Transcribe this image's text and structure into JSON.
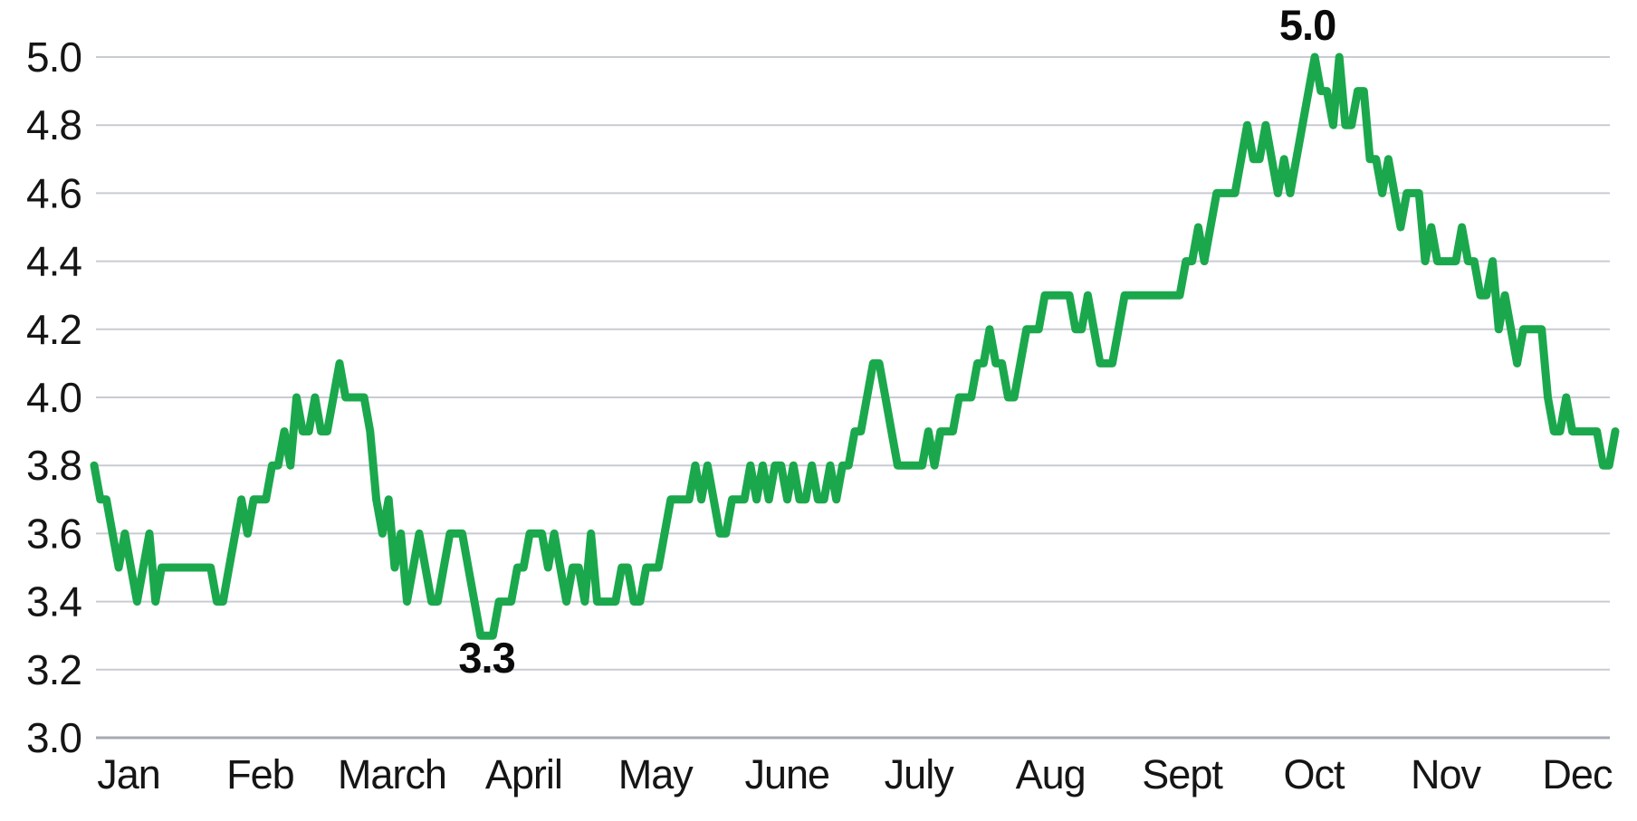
{
  "chart_data": {
    "type": "line",
    "title": "",
    "xlabel": "",
    "ylabel": "",
    "ylim": [
      3.0,
      5.0
    ],
    "ytick_step": 0.2,
    "y_tick_labels": [
      "5.0",
      "4.8",
      "4.6",
      "4.4",
      "4.2",
      "4.0",
      "3.8",
      "3.6",
      "3.4",
      "3.2",
      "3.0"
    ],
    "grid": true,
    "legend": "none",
    "colors": {
      "line": "#1ba84d",
      "grid": "#c9cbd3",
      "axis_bottom": "#a7aab3",
      "text": "#151515",
      "annotation": "#0b0b0b"
    },
    "annotations": [
      {
        "text": "5.0",
        "anchor": "max"
      },
      {
        "text": "3.3",
        "anchor": "min"
      }
    ],
    "series": [
      {
        "name": "line",
        "months": [
          {
            "label": "Jan",
            "values": [
              3.8,
              3.7,
              3.7,
              3.6,
              3.5,
              3.6,
              3.5,
              3.4,
              3.5,
              3.6,
              3.4,
              3.5,
              3.5,
              3.5,
              3.5,
              3.5,
              3.5,
              3.5,
              3.5,
              3.5
            ]
          },
          {
            "label": "Feb",
            "values": [
              3.4,
              3.4,
              3.5,
              3.6,
              3.7,
              3.6,
              3.7,
              3.7,
              3.7,
              3.8,
              3.8,
              3.9,
              3.8,
              4.0,
              3.9,
              3.9,
              4.0,
              3.9,
              3.9
            ]
          },
          {
            "label": "March",
            "values": [
              4.0,
              4.1,
              4.0,
              4.0,
              4.0,
              4.0,
              3.9,
              3.7,
              3.6,
              3.7,
              3.5,
              3.6,
              3.4,
              3.5,
              3.6,
              3.5,
              3.4,
              3.4,
              3.5,
              3.6,
              3.6,
              3.6,
              3.5
            ]
          },
          {
            "label": "April",
            "values": [
              3.4,
              3.3,
              3.3,
              3.3,
              3.4,
              3.4,
              3.4,
              3.5,
              3.5,
              3.6,
              3.6,
              3.6,
              3.5,
              3.6,
              3.5,
              3.4,
              3.5,
              3.5,
              3.4
            ]
          },
          {
            "label": "May",
            "values": [
              3.6,
              3.4,
              3.4,
              3.4,
              3.4,
              3.5,
              3.5,
              3.4,
              3.4,
              3.5,
              3.5,
              3.5,
              3.6,
              3.7,
              3.7,
              3.7,
              3.7,
              3.8,
              3.7,
              3.8,
              3.7,
              3.6
            ]
          },
          {
            "label": "June",
            "values": [
              3.6,
              3.7,
              3.7,
              3.7,
              3.8,
              3.7,
              3.8,
              3.7,
              3.8,
              3.8,
              3.7,
              3.8,
              3.7,
              3.7,
              3.8,
              3.7,
              3.7,
              3.8,
              3.7,
              3.8,
              3.8
            ]
          },
          {
            "label": "July",
            "values": [
              3.9,
              3.9,
              4.0,
              4.1,
              4.1,
              4.0,
              3.9,
              3.8,
              3.8,
              3.8,
              3.8,
              3.8,
              3.9,
              3.8,
              3.9,
              3.9,
              3.9,
              4.0,
              4.0,
              4.0
            ]
          },
          {
            "label": "Aug",
            "values": [
              4.1,
              4.1,
              4.2,
              4.1,
              4.1,
              4.0,
              4.0,
              4.1,
              4.2,
              4.2,
              4.2,
              4.3,
              4.3,
              4.3,
              4.3,
              4.3,
              4.2,
              4.2,
              4.3,
              4.2,
              4.1,
              4.1,
              4.1
            ]
          },
          {
            "label": "Sept",
            "values": [
              4.2,
              4.3,
              4.3,
              4.3,
              4.3,
              4.3,
              4.3,
              4.3,
              4.3,
              4.3,
              4.3,
              4.4,
              4.4,
              4.5,
              4.4,
              4.5,
              4.6,
              4.6,
              4.6,
              4.6
            ]
          },
          {
            "label": "Oct",
            "values": [
              4.7,
              4.8,
              4.7,
              4.7,
              4.8,
              4.7,
              4.6,
              4.7,
              4.6,
              4.7,
              4.8,
              4.9,
              5.0,
              4.9,
              4.9,
              4.8,
              5.0,
              4.8,
              4.8,
              4.9,
              4.9
            ]
          },
          {
            "label": "Nov",
            "values": [
              4.7,
              4.7,
              4.6,
              4.7,
              4.6,
              4.5,
              4.6,
              4.6,
              4.6,
              4.4,
              4.5,
              4.4,
              4.4,
              4.4,
              4.4,
              4.5,
              4.4,
              4.4,
              4.3,
              4.3,
              4.4
            ]
          },
          {
            "label": "Dec",
            "values": [
              4.2,
              4.3,
              4.2,
              4.1,
              4.2,
              4.2,
              4.2,
              4.2,
              4.0,
              3.9,
              3.9,
              4.0,
              3.9,
              3.9,
              3.9,
              3.9,
              3.9,
              3.8,
              3.8,
              3.9
            ]
          }
        ]
      }
    ]
  }
}
